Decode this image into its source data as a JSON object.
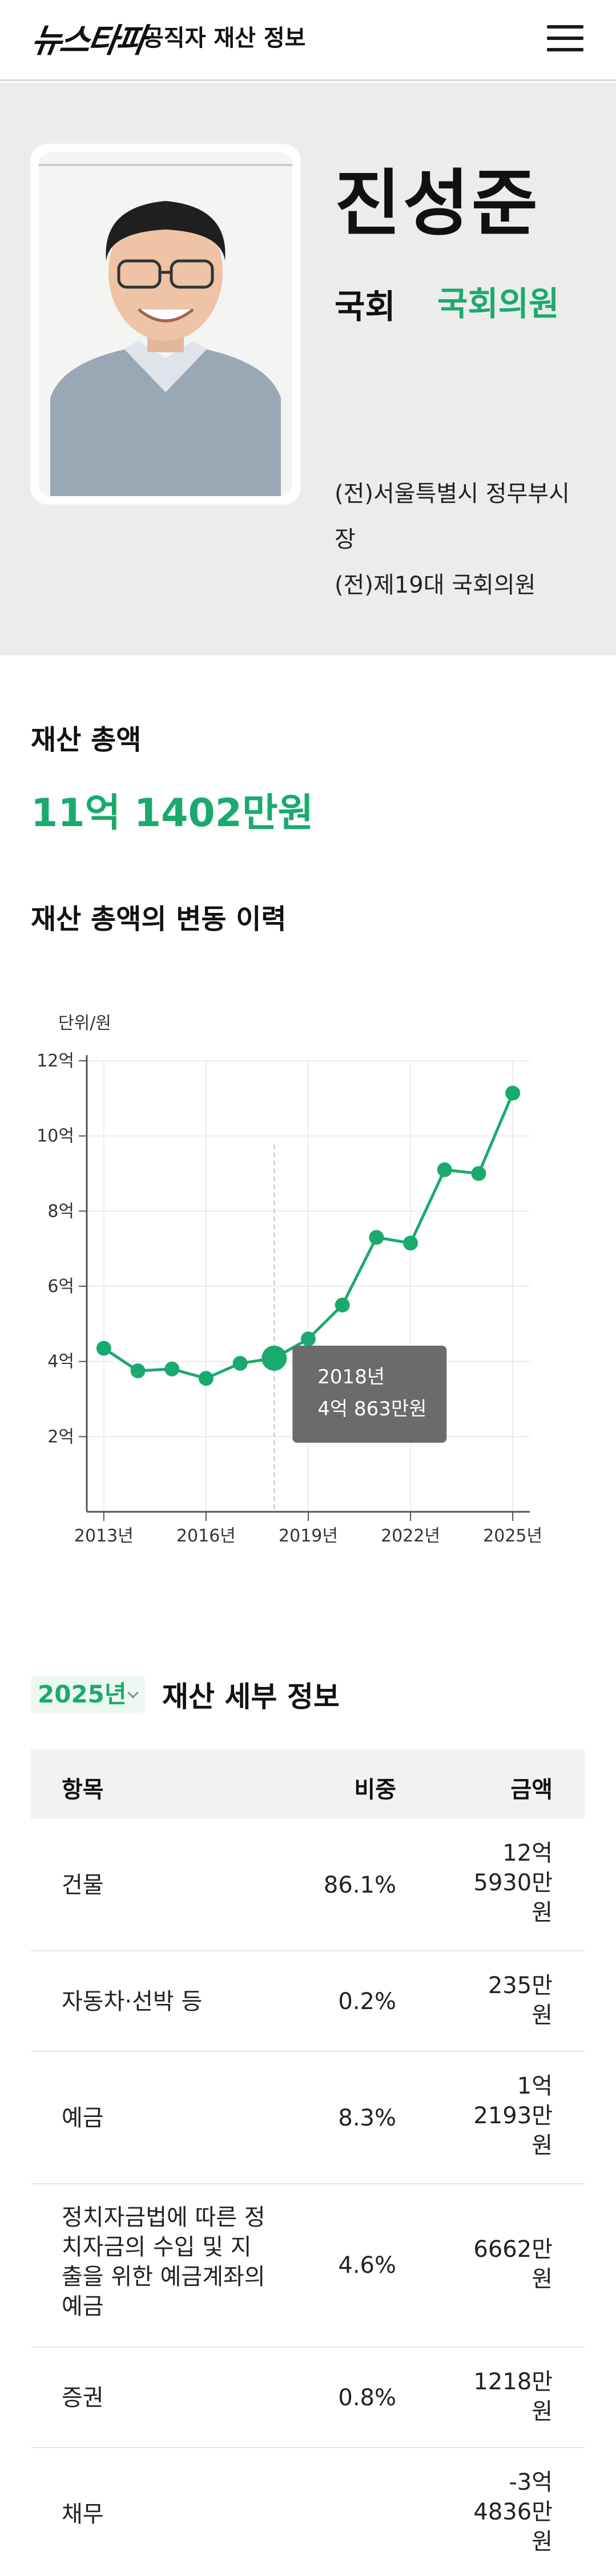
{
  "header": {
    "logo": "뉴스타파",
    "title": "공직자 재산 정보",
    "menu_icon": "hamburger-menu-icon"
  },
  "profile": {
    "name": "진성준",
    "party_label": "국회",
    "party_name": "국회의원",
    "career": [
      "(전)서울특별시 정무부시장",
      "(전)제19대 국회의원"
    ],
    "photo_icon": "person-portrait"
  },
  "total": {
    "label": "재산 총액",
    "value": "11억 1402만원"
  },
  "history": {
    "label": "재산 총액의 변동 이력"
  },
  "chart_data": {
    "type": "line",
    "unit_label": "단위/원",
    "x": [
      2013,
      2014,
      2015,
      2016,
      2017,
      2018,
      2019,
      2020,
      2021,
      2022,
      2023,
      2024,
      2025
    ],
    "values": [
      4.35,
      3.75,
      3.8,
      3.55,
      3.95,
      4.0863,
      4.6,
      5.5,
      7.3,
      7.15,
      9.1,
      9.0,
      11.1402
    ],
    "x_ticks": [
      "2013년",
      "2016년",
      "2019년",
      "2022년",
      "2025년"
    ],
    "x_tick_values": [
      2013,
      2016,
      2019,
      2022,
      2025
    ],
    "y_ticks": [
      "2억",
      "4억",
      "6억",
      "8억",
      "10억",
      "12억"
    ],
    "y_tick_values": [
      2,
      4,
      6,
      8,
      10,
      12
    ],
    "ylim": [
      0,
      12
    ],
    "xlim": [
      2012.5,
      2025.5
    ],
    "grid": true,
    "line_color": "#1aaa6e",
    "highlight": {
      "x": 2018,
      "title": "2018년",
      "value_text": "4억 863만원"
    }
  },
  "detail": {
    "year": "2025년",
    "title": "재산 세부 정보",
    "columns": {
      "item": "항목",
      "ratio": "비중",
      "amount": "금액"
    },
    "rows": [
      {
        "item": "건물",
        "ratio": "86.1%",
        "amount": [
          "12억",
          "5930만",
          "원"
        ]
      },
      {
        "item": "자동차·선박 등",
        "ratio": "0.2%",
        "amount": [
          "235만",
          "원"
        ]
      },
      {
        "item": "예금",
        "ratio": "8.3%",
        "amount": [
          "1억",
          "2193만",
          "원"
        ]
      },
      {
        "item": "정치자금법에 따른 정치자금의 수입 및 지출을 위한 예금계좌의 예금",
        "ratio": "4.6%",
        "amount": [
          "6662만",
          "원"
        ]
      },
      {
        "item": "증권",
        "ratio": "0.8%",
        "amount": [
          "1218만",
          "원"
        ]
      },
      {
        "item": "채무",
        "ratio": "",
        "amount": [
          "-3억",
          "4836만",
          "원"
        ]
      }
    ]
  }
}
